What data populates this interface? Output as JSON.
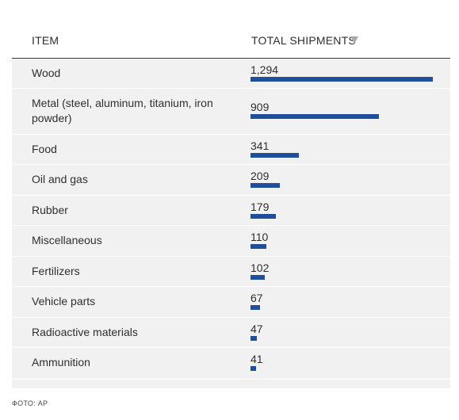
{
  "table": {
    "header": {
      "item": "ITEM",
      "shipments": "TOTAL SHIPMENTS"
    }
  },
  "chart_data": {
    "type": "bar",
    "orientation": "horizontal",
    "sort": "descending",
    "categories": [
      "Wood",
      "Metal (steel, aluminum, titanium, iron powder)",
      "Food",
      "Oil and gas",
      "Rubber",
      "Miscellaneous",
      "Fertilizers",
      "Vehicle parts",
      "Radioactive materials",
      "Ammunition"
    ],
    "values": [
      1294,
      909,
      341,
      209,
      179,
      110,
      102,
      67,
      47,
      41
    ],
    "value_labels": [
      "1,294",
      "909",
      "341",
      "209",
      "179",
      "110",
      "102",
      "67",
      "47",
      "41"
    ],
    "bar_color": "#1f4e9c"
  },
  "caption": "ФОТО: AP"
}
